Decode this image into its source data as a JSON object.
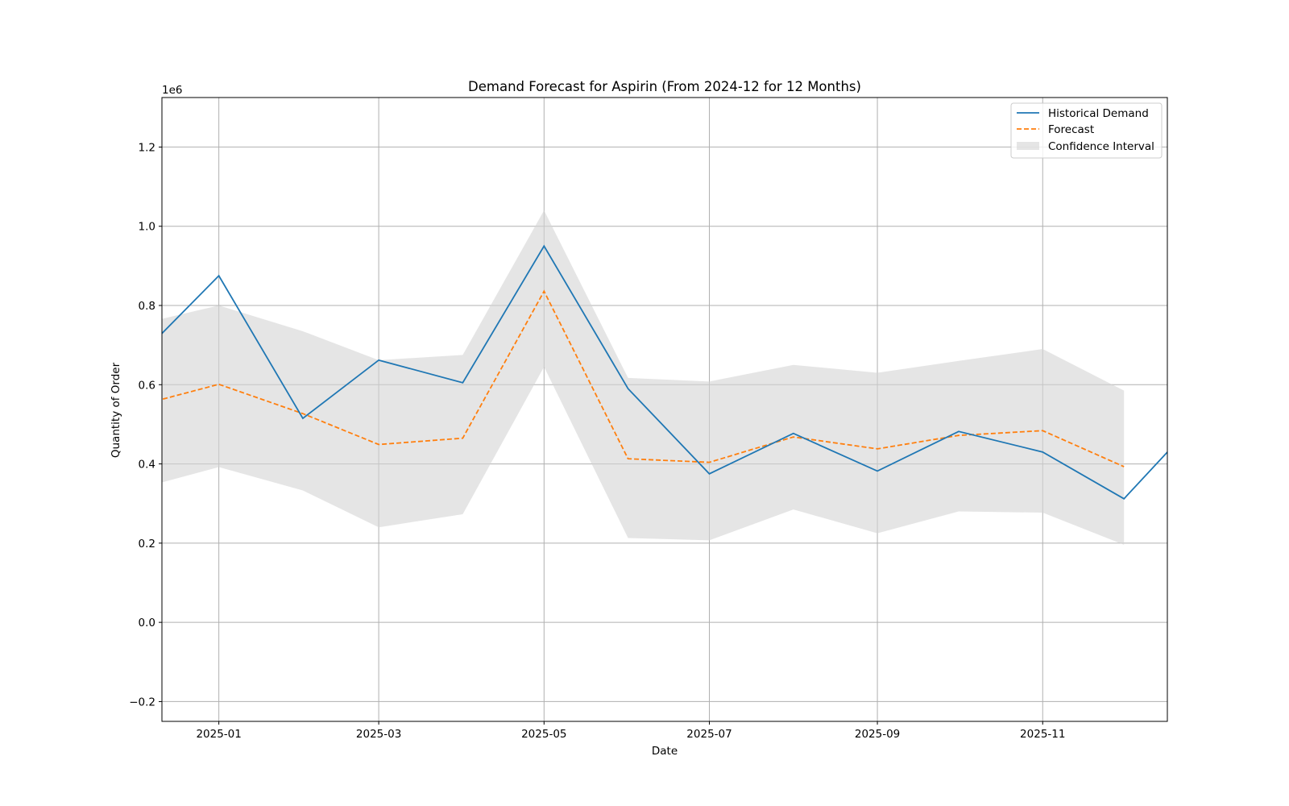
{
  "chart_data": {
    "type": "line",
    "title": "Demand Forecast for Aspirin (From 2024-12 for 12 Months)",
    "xlabel": "Date",
    "ylabel": "Quantity of Order",
    "y_offset_label": "1e6",
    "x_ticks": [
      "2025-01",
      "2025-03",
      "2025-05",
      "2025-07",
      "2025-09",
      "2025-11"
    ],
    "y_ticks": [
      "−0.2",
      "0.0",
      "0.2",
      "0.4",
      "0.6",
      "0.8",
      "1.0",
      "1.2"
    ],
    "xlim": [
      "2024-12-11",
      "2025-12-17"
    ],
    "ylim": [
      -0.25,
      1.325
    ],
    "y_scale": 1000000,
    "grid": true,
    "legend_position": "top-right",
    "colors": {
      "historical": "#1f77b4",
      "forecast": "#ff7f0e",
      "confidence": "#d3d3d3"
    },
    "series": [
      {
        "name": "Historical Demand",
        "style": "solid",
        "x": [
          "2024-12-01",
          "2025-01-01",
          "2025-02-01",
          "2025-03-01",
          "2025-04-01",
          "2025-05-01",
          "2025-06-01",
          "2025-07-01",
          "2025-08-01",
          "2025-09-01",
          "2025-10-01",
          "2025-11-01",
          "2025-12-01",
          "2026-01-01"
        ],
        "values": [
          0.66,
          0.875,
          0.515,
          0.662,
          0.605,
          0.95,
          0.59,
          0.375,
          0.477,
          0.382,
          0.482,
          0.43,
          0.312,
          0.54
        ]
      },
      {
        "name": "Forecast",
        "style": "dashed",
        "x": [
          "2024-12-01",
          "2025-01-01",
          "2025-02-01",
          "2025-03-01",
          "2025-04-01",
          "2025-05-01",
          "2025-06-01",
          "2025-07-01",
          "2025-08-01",
          "2025-09-01",
          "2025-10-01",
          "2025-11-01",
          "2025-12-01"
        ],
        "values": [
          0.545,
          0.601,
          0.527,
          0.449,
          0.465,
          0.836,
          0.413,
          0.404,
          0.468,
          0.438,
          0.472,
          0.484,
          0.393
        ]
      }
    ],
    "confidence_interval": {
      "name": "Confidence Interval",
      "x": [
        "2024-12-01",
        "2025-01-01",
        "2025-02-01",
        "2025-03-01",
        "2025-04-01",
        "2025-05-01",
        "2025-06-01",
        "2025-07-01",
        "2025-08-01",
        "2025-09-01",
        "2025-10-01",
        "2025-11-01",
        "2025-12-01"
      ],
      "upper": [
        0.75,
        0.8,
        0.735,
        0.662,
        0.675,
        1.04,
        0.617,
        0.608,
        0.65,
        0.63,
        0.66,
        0.69,
        0.585
      ],
      "lower": [
        0.335,
        0.392,
        0.333,
        0.24,
        0.273,
        0.645,
        0.213,
        0.207,
        0.285,
        0.225,
        0.28,
        0.277,
        0.196
      ]
    }
  }
}
